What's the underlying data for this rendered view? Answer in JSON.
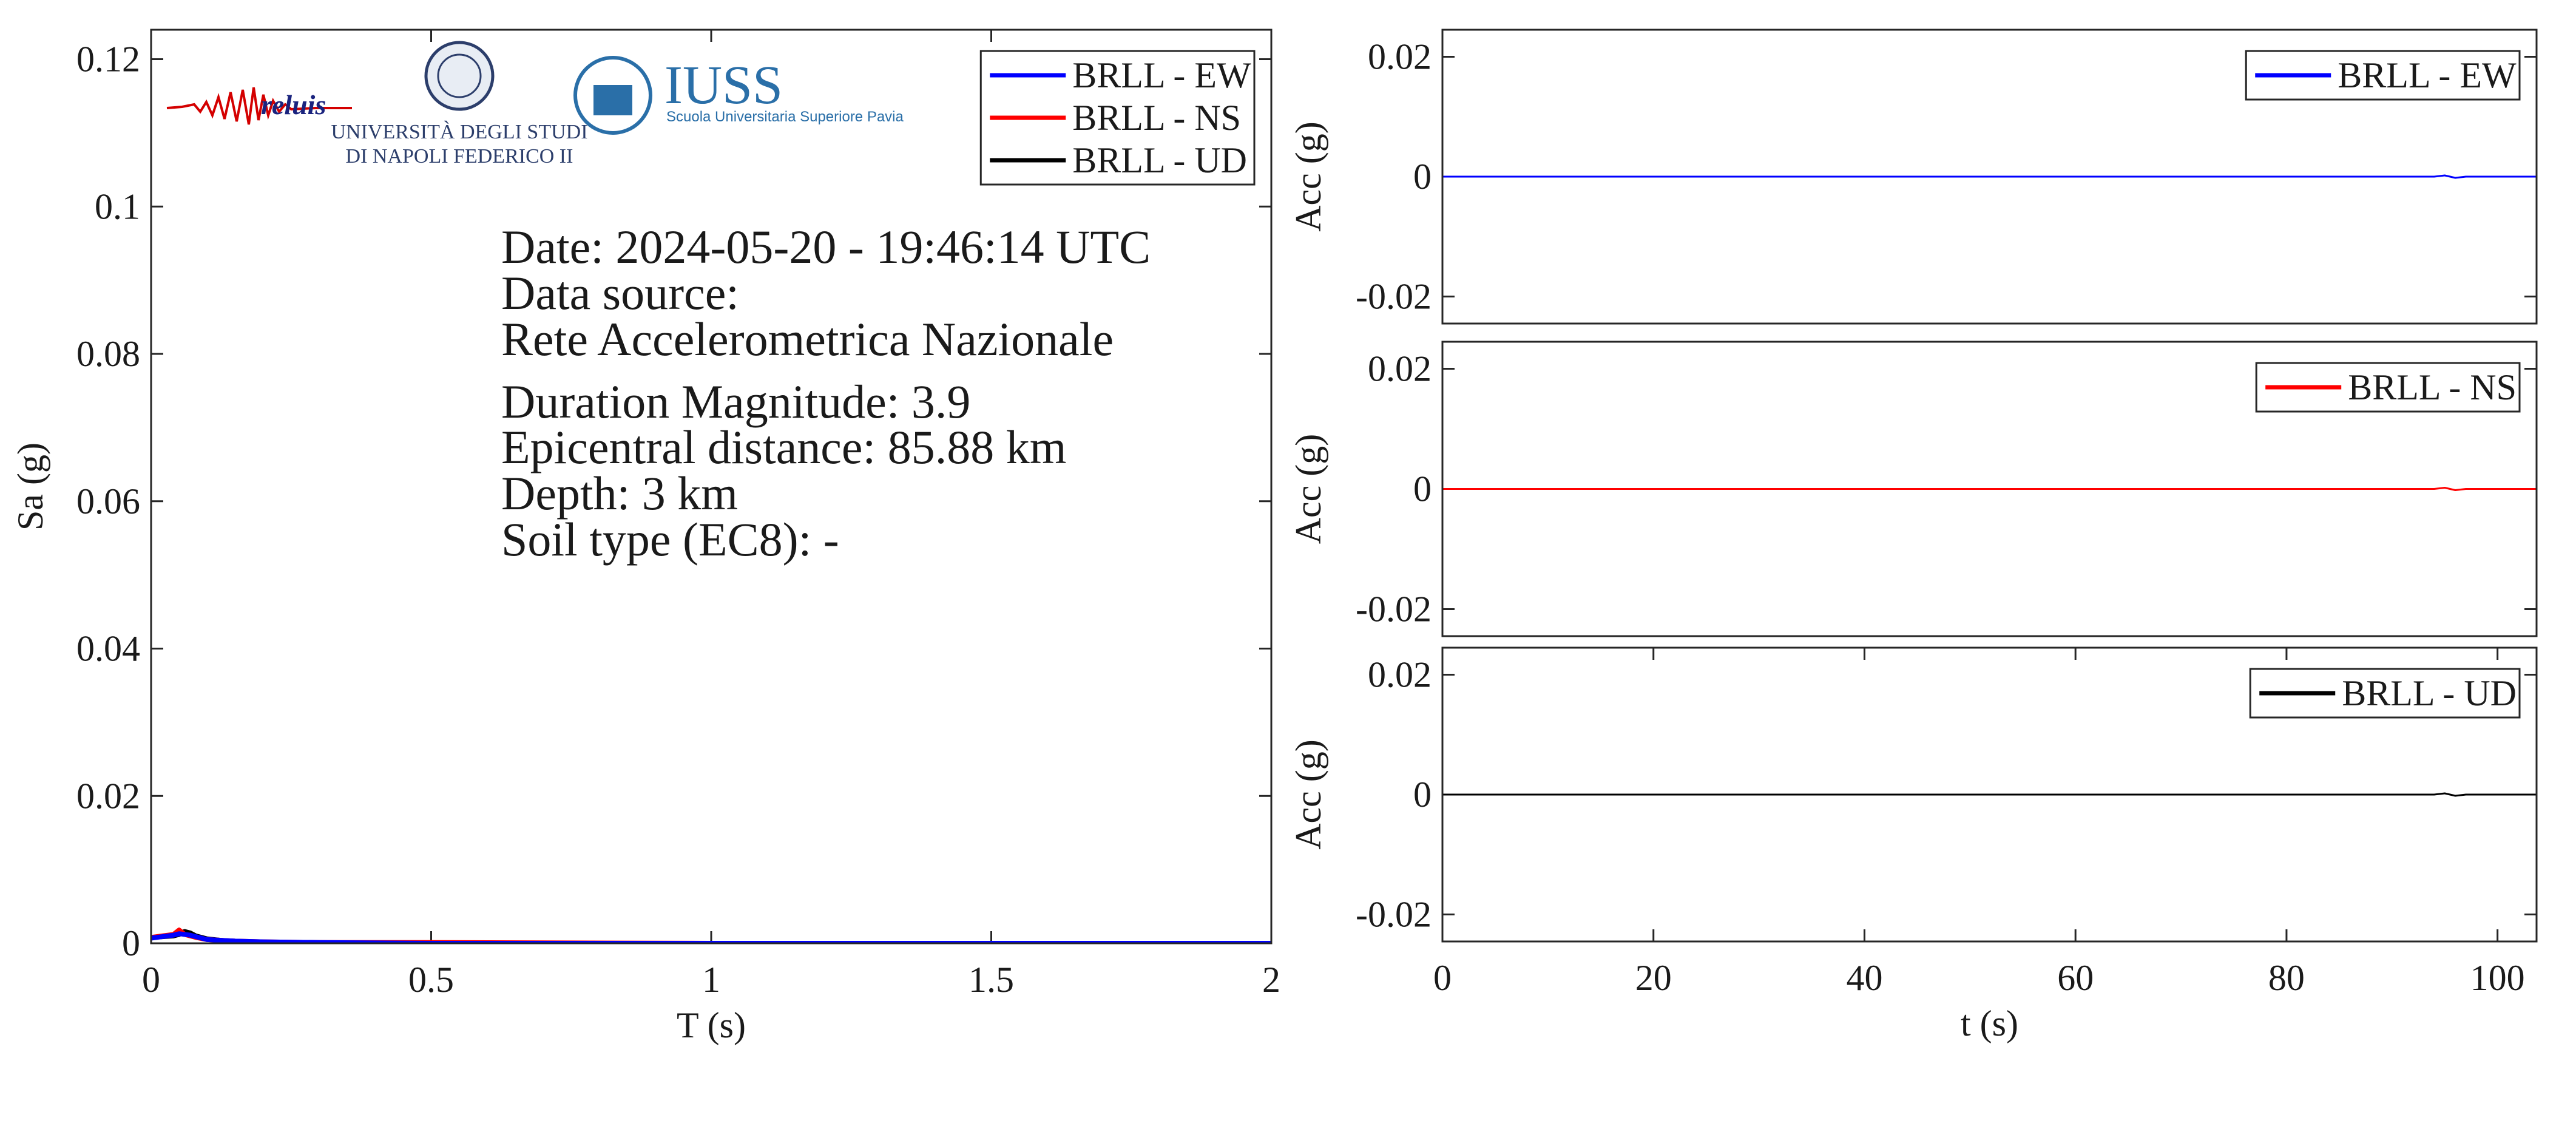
{
  "logos": {
    "reluis": "reluis",
    "unina_line1": "UNIVERSITÀ DEGLI STUDI",
    "unina_line2": "DI NAPOLI FEDERICO II",
    "iuss": "IUSS",
    "iuss_sub": "Scuola Universitaria Superiore Pavia"
  },
  "chart_data": [
    {
      "type": "line",
      "xlabel": "T (s)",
      "ylabel": "Sa (g)",
      "x": [
        0,
        0.02,
        0.04,
        0.05,
        0.06,
        0.07,
        0.08,
        0.1,
        0.15,
        0.2,
        0.3,
        0.5,
        1,
        1.5,
        2
      ],
      "series": [
        {
          "name": "BRLL - EW",
          "color": "#0000ff",
          "values": [
            0.0007,
            0.0009,
            0.0011,
            0.0013,
            0.0012,
            0.0011,
            0.0009,
            0.0005,
            0.0003,
            0.0002,
            0.0001,
            0,
            0,
            0,
            0
          ]
        },
        {
          "name": "BRLL - NS",
          "color": "#ff0000",
          "values": [
            0.0008,
            0.001,
            0.0012,
            0.0018,
            0.0012,
            0.001,
            0.0008,
            0.0005,
            0.0003,
            0.0002,
            0.0001,
            0.0001,
            0,
            0,
            0
          ]
        },
        {
          "name": "BRLL - UD",
          "color": "#000000",
          "values": [
            0.0008,
            0.0009,
            0.001,
            0.0012,
            0.0016,
            0.0014,
            0.001,
            0.0006,
            0.0002,
            0.0001,
            0,
            0,
            0,
            0,
            0
          ]
        }
      ],
      "xlim": [
        0,
        2
      ],
      "ylim": [
        0,
        0.124
      ],
      "xticks": [
        0,
        0.5,
        1,
        1.5,
        2
      ],
      "yticks": [
        0,
        0.02,
        0.04,
        0.06,
        0.08,
        0.1,
        0.12
      ],
      "legend": "upper right",
      "annotations": [
        "Date: 2024-05-20 - 19:46:14 UTC",
        "Data source:",
        "Rete Accelerometrica Nazionale",
        "Duration Magnitude: 3.9",
        "Epicentral distance: 85.88 km",
        "Depth: 3 km",
        "Soil type (EC8): -"
      ]
    },
    {
      "type": "line",
      "ylabel": "Acc (g)",
      "x": [
        0,
        20,
        40,
        60,
        80,
        94,
        95,
        96,
        97,
        103.7
      ],
      "series": [
        {
          "name": "BRLL - EW",
          "color": "#0000ff",
          "values": [
            0,
            0,
            0,
            0,
            0,
            0,
            0.0002,
            -0.0002,
            0,
            0
          ]
        }
      ],
      "xlim": [
        0,
        103.7
      ],
      "ylim": [
        -0.0245,
        0.0245
      ],
      "yticks": [
        -0.02,
        0,
        0.02
      ],
      "legend": "upper right"
    },
    {
      "type": "line",
      "ylabel": "Acc (g)",
      "x": [
        0,
        20,
        40,
        60,
        80,
        94,
        95,
        96,
        97,
        103.7
      ],
      "series": [
        {
          "name": "BRLL - NS",
          "color": "#ff0000",
          "values": [
            0,
            0,
            0,
            0,
            0,
            0,
            0.0002,
            -0.0002,
            0,
            0
          ]
        }
      ],
      "xlim": [
        0,
        103.7
      ],
      "ylim": [
        -0.0245,
        0.0245
      ],
      "yticks": [
        -0.02,
        0,
        0.02
      ],
      "legend": "upper right"
    },
    {
      "type": "line",
      "xlabel": "t (s)",
      "ylabel": "Acc (g)",
      "x": [
        0,
        20,
        40,
        60,
        80,
        94,
        95,
        96,
        97,
        103.7
      ],
      "series": [
        {
          "name": "BRLL - UD",
          "color": "#000000",
          "values": [
            0,
            0,
            0,
            0,
            0,
            0,
            0.0002,
            -0.0002,
            0,
            0
          ]
        }
      ],
      "xlim": [
        0,
        103.7
      ],
      "ylim": [
        -0.0245,
        0.0245
      ],
      "xticks": [
        0,
        20,
        40,
        60,
        80,
        100
      ],
      "yticks": [
        -0.02,
        0,
        0.02
      ],
      "legend": "upper right"
    }
  ]
}
